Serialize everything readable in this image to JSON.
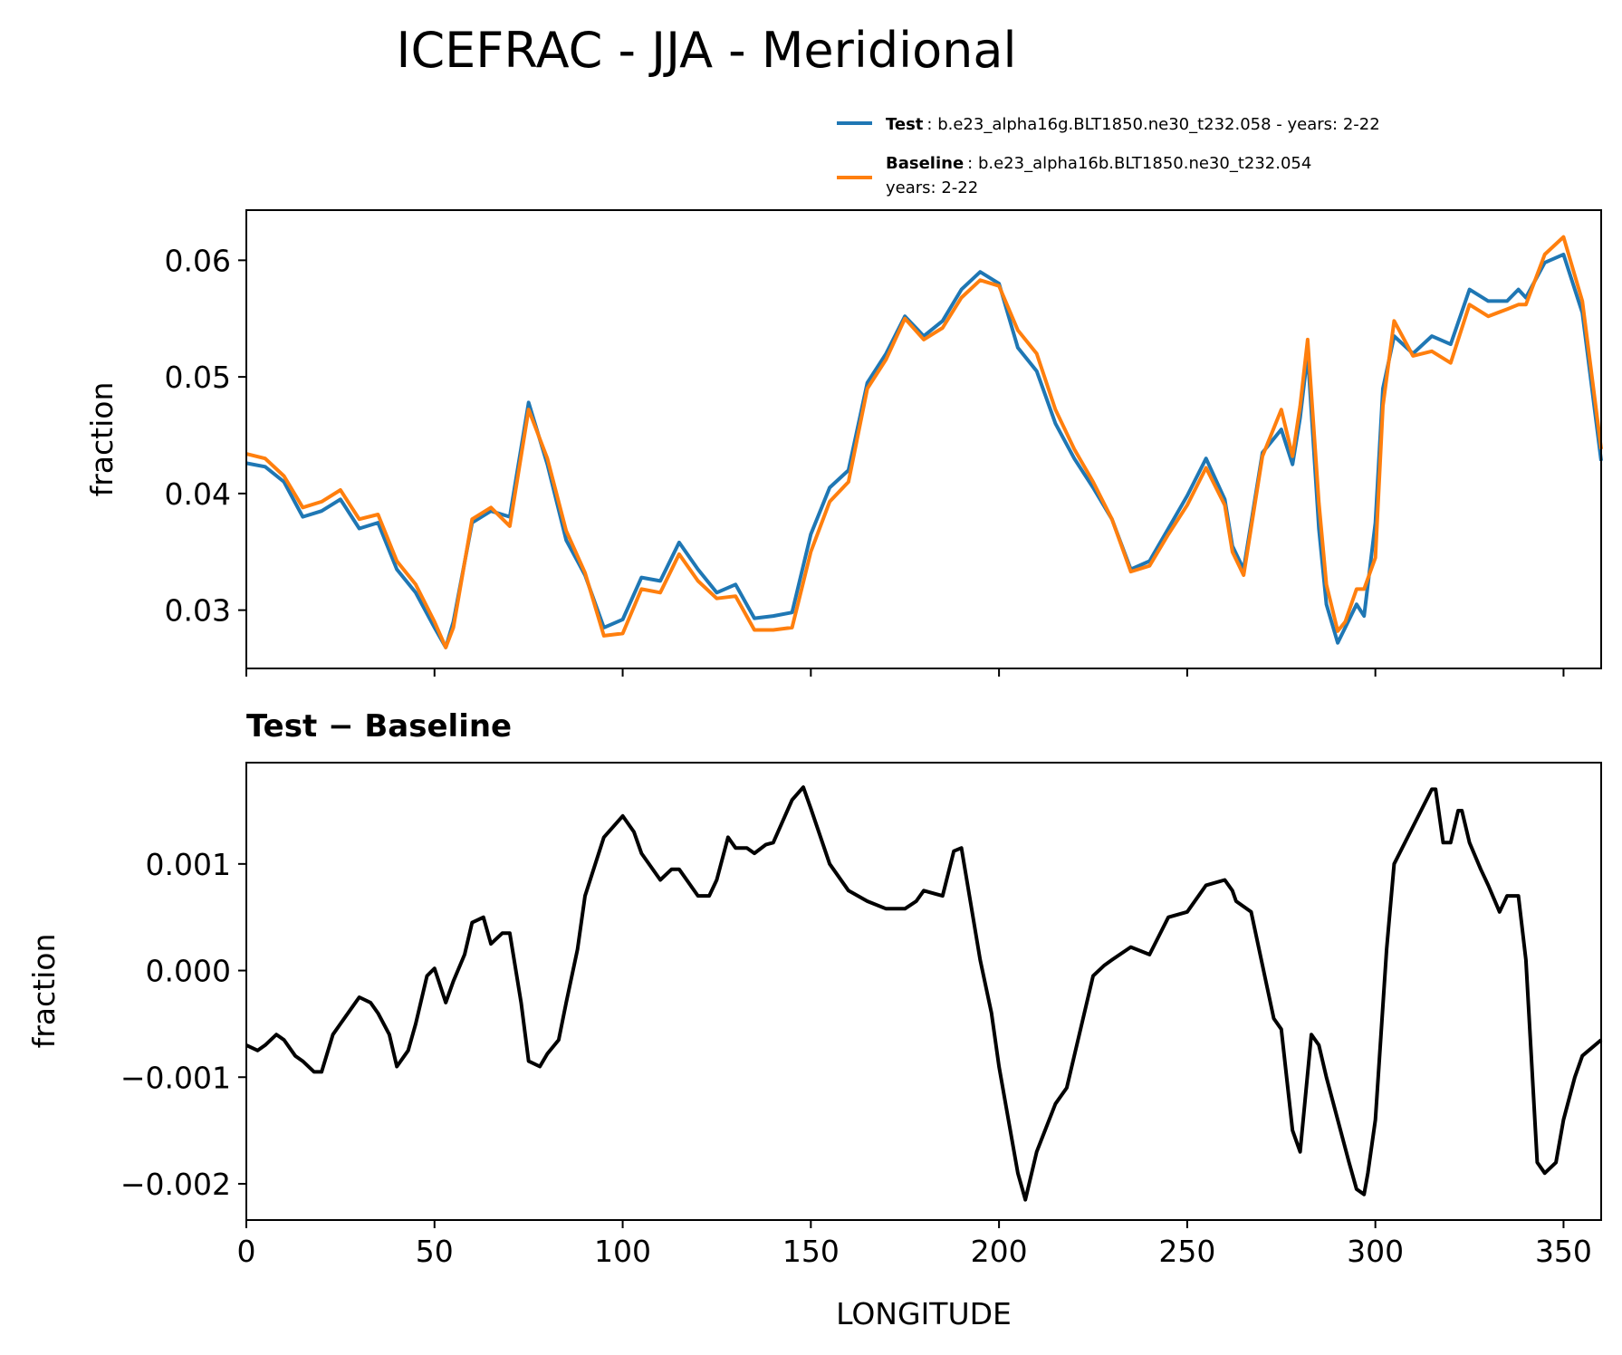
{
  "chart_data": {
    "type": "line",
    "title": "ICEFRAC - JJA - Meridional",
    "xlabel": "LONGITUDE",
    "xlim": [
      0,
      360
    ],
    "xticks": [
      0,
      50,
      100,
      150,
      200,
      250,
      300,
      350
    ],
    "xtick_labels": [
      "0",
      "50",
      "100",
      "150",
      "200",
      "250",
      "300",
      "350"
    ],
    "colors": {
      "test": "#1f77b4",
      "baseline": "#ff7f0e",
      "diff": "#000000"
    },
    "legend": {
      "test_bold": "Test",
      "test_text": ": b.e23_alpha16g.BLT1850.ne30_t232.058 - years: 2-22",
      "baseline_bold": "Baseline",
      "baseline_text": ": b.e23_alpha16b.BLT1850.ne30_t232.054",
      "baseline_text2": "years: 2-22",
      "placement": "top-right above panel"
    },
    "top_panel": {
      "ylabel": "fraction",
      "ylim": [
        0.025,
        0.0643
      ],
      "yticks": [
        0.03,
        0.04,
        0.05,
        0.06
      ],
      "ytick_labels": [
        "0.03",
        "0.04",
        "0.05",
        "0.06"
      ],
      "series": [
        {
          "name": "Test",
          "x": [
            0,
            5,
            10,
            15,
            20,
            25,
            30,
            35,
            40,
            45,
            50,
            53,
            55,
            60,
            65,
            70,
            75,
            80,
            85,
            90,
            95,
            100,
            105,
            110,
            115,
            120,
            125,
            130,
            135,
            140,
            145,
            150,
            155,
            160,
            165,
            170,
            175,
            180,
            185,
            190,
            195,
            200,
            205,
            210,
            215,
            220,
            225,
            230,
            235,
            240,
            245,
            250,
            255,
            260,
            262,
            265,
            270,
            275,
            278,
            280,
            282,
            285,
            287,
            290,
            292,
            295,
            297,
            300,
            302,
            305,
            310,
            315,
            320,
            325,
            330,
            335,
            338,
            340,
            345,
            350,
            355,
            360
          ],
          "y": [
            0.0426,
            0.0423,
            0.041,
            0.038,
            0.0385,
            0.0395,
            0.037,
            0.0375,
            0.0335,
            0.0315,
            0.0285,
            0.0268,
            0.029,
            0.0375,
            0.0385,
            0.038,
            0.0478,
            0.0425,
            0.036,
            0.033,
            0.0285,
            0.0292,
            0.0328,
            0.0325,
            0.0358,
            0.0335,
            0.0315,
            0.0322,
            0.0293,
            0.0295,
            0.0298,
            0.0365,
            0.0405,
            0.042,
            0.0495,
            0.052,
            0.0552,
            0.0535,
            0.0548,
            0.0575,
            0.059,
            0.058,
            0.0525,
            0.0505,
            0.046,
            0.043,
            0.0405,
            0.0378,
            0.0335,
            0.0342,
            0.037,
            0.0398,
            0.043,
            0.0395,
            0.0355,
            0.0335,
            0.0435,
            0.0455,
            0.0425,
            0.0465,
            0.052,
            0.037,
            0.0305,
            0.0272,
            0.0285,
            0.0305,
            0.0295,
            0.0375,
            0.049,
            0.0535,
            0.052,
            0.0535,
            0.0528,
            0.0575,
            0.0565,
            0.0565,
            0.0575,
            0.0568,
            0.0598,
            0.0605,
            0.0555,
            0.0428
          ]
        },
        {
          "name": "Baseline",
          "x": [
            0,
            5,
            10,
            15,
            20,
            25,
            30,
            35,
            40,
            45,
            50,
            53,
            55,
            60,
            65,
            70,
            75,
            80,
            85,
            90,
            95,
            100,
            105,
            110,
            115,
            120,
            125,
            130,
            135,
            140,
            145,
            150,
            155,
            160,
            165,
            170,
            175,
            180,
            185,
            190,
            195,
            200,
            205,
            210,
            215,
            220,
            225,
            230,
            235,
            240,
            245,
            250,
            255,
            260,
            262,
            265,
            270,
            275,
            278,
            280,
            282,
            285,
            287,
            290,
            292,
            295,
            297,
            300,
            302,
            305,
            310,
            315,
            320,
            325,
            330,
            335,
            338,
            340,
            345,
            350,
            355,
            360
          ],
          "y": [
            0.0434,
            0.043,
            0.0415,
            0.0388,
            0.0393,
            0.0403,
            0.0378,
            0.0382,
            0.0342,
            0.0322,
            0.029,
            0.0268,
            0.0285,
            0.0378,
            0.0388,
            0.0372,
            0.0472,
            0.043,
            0.0368,
            0.0332,
            0.0278,
            0.028,
            0.0318,
            0.0315,
            0.0348,
            0.0325,
            0.031,
            0.0312,
            0.0283,
            0.0283,
            0.0285,
            0.035,
            0.0393,
            0.041,
            0.049,
            0.0515,
            0.055,
            0.0532,
            0.0542,
            0.0568,
            0.0583,
            0.0578,
            0.054,
            0.052,
            0.0472,
            0.0438,
            0.041,
            0.0378,
            0.0333,
            0.0338,
            0.0365,
            0.039,
            0.0422,
            0.039,
            0.035,
            0.033,
            0.0432,
            0.0472,
            0.0432,
            0.0475,
            0.0532,
            0.0392,
            0.0322,
            0.0282,
            0.029,
            0.0318,
            0.0318,
            0.0345,
            0.0475,
            0.0548,
            0.0518,
            0.0522,
            0.0512,
            0.0562,
            0.0552,
            0.0558,
            0.0562,
            0.0562,
            0.0605,
            0.062,
            0.0565,
            0.0438
          ]
        }
      ]
    },
    "bottom_panel": {
      "title": "Test − Baseline",
      "ylabel": "fraction",
      "ylim": [
        -0.00234,
        0.00195
      ],
      "yticks": [
        -0.002,
        -0.001,
        0.0,
        0.001
      ],
      "ytick_labels": [
        "−0.002",
        "−0.001",
        "0.000",
        "0.001"
      ],
      "series": [
        {
          "name": "Test − Baseline",
          "x": [
            0,
            3,
            5,
            8,
            10,
            13,
            15,
            18,
            20,
            23,
            25,
            28,
            30,
            33,
            35,
            38,
            40,
            43,
            45,
            48,
            50,
            53,
            55,
            58,
            60,
            63,
            65,
            68,
            70,
            73,
            75,
            78,
            80,
            83,
            85,
            88,
            90,
            95,
            100,
            103,
            105,
            110,
            113,
            115,
            118,
            120,
            123,
            125,
            128,
            130,
            133,
            135,
            138,
            140,
            145,
            148,
            150,
            155,
            160,
            165,
            170,
            175,
            178,
            180,
            183,
            185,
            188,
            190,
            195,
            198,
            200,
            205,
            207,
            210,
            215,
            218,
            220,
            225,
            228,
            230,
            235,
            240,
            245,
            250,
            255,
            260,
            262,
            263,
            265,
            267,
            270,
            273,
            275,
            278,
            280,
            283,
            285,
            287,
            290,
            293,
            295,
            297,
            298,
            300,
            303,
            305,
            310,
            315,
            316,
            318,
            320,
            322,
            323,
            325,
            328,
            330,
            333,
            335,
            338,
            340,
            343,
            345,
            348,
            350,
            353,
            355,
            360
          ],
          "y": [
            -0.0007,
            -0.00075,
            -0.0007,
            -0.0006,
            -0.00065,
            -0.0008,
            -0.00085,
            -0.00095,
            -0.00095,
            -0.0006,
            -0.0005,
            -0.00035,
            -0.00025,
            -0.0003,
            -0.0004,
            -0.0006,
            -0.0009,
            -0.00075,
            -0.0005,
            -5e-05,
            2e-05,
            -0.0003,
            -0.0001,
            0.00015,
            0.00045,
            0.0005,
            0.00025,
            0.00035,
            0.00035,
            -0.0003,
            -0.00085,
            -0.0009,
            -0.00078,
            -0.00065,
            -0.0003,
            0.0002,
            0.0007,
            0.00125,
            0.00145,
            0.0013,
            0.0011,
            0.00085,
            0.00095,
            0.00095,
            0.0008,
            0.0007,
            0.0007,
            0.00085,
            0.00125,
            0.00115,
            0.00115,
            0.0011,
            0.00118,
            0.0012,
            0.0016,
            0.00172,
            0.00152,
            0.001,
            0.00075,
            0.00065,
            0.00058,
            0.00058,
            0.00065,
            0.00075,
            0.00072,
            0.0007,
            0.00112,
            0.00115,
            0.0001,
            -0.0004,
            -0.0009,
            -0.0019,
            -0.00215,
            -0.0017,
            -0.00125,
            -0.0011,
            -0.0008,
            -5e-05,
            5e-05,
            0.0001,
            0.00022,
            0.00015,
            0.0005,
            0.00055,
            0.0008,
            0.00085,
            0.00075,
            0.00065,
            0.0006,
            0.00055,
            5e-05,
            -0.00045,
            -0.00055,
            -0.0015,
            -0.0017,
            -0.0006,
            -0.0007,
            -0.001,
            -0.0014,
            -0.0018,
            -0.00205,
            -0.0021,
            -0.0019,
            -0.0014,
            0.0002,
            0.001,
            0.00135,
            0.0017,
            0.0017,
            0.0012,
            0.0012,
            0.0015,
            0.0015,
            0.0012,
            0.00095,
            0.0008,
            0.00055,
            0.0007,
            0.0007,
            0.0001,
            -0.0018,
            -0.0019,
            -0.0018,
            -0.0014,
            -0.001,
            -0.0008,
            -0.00065
          ]
        }
      ]
    }
  }
}
